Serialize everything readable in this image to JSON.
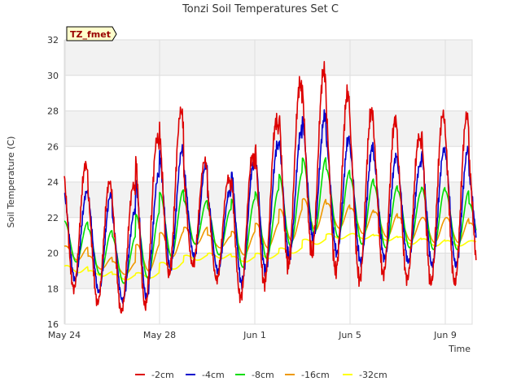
{
  "chart_data": {
    "type": "line",
    "title": "Tonzi Soil Temperatures Set C",
    "xlabel": "Time",
    "ylabel": "Soil Temperature (C)",
    "badge": "TZ_fmet",
    "xlim": [
      "2023-05-24",
      "2023-06-11"
    ],
    "ylim": [
      16,
      32
    ],
    "yticks": [
      16,
      18,
      20,
      22,
      24,
      26,
      28,
      30,
      32
    ],
    "xticks": [
      {
        "label": "May 24",
        "day": 0
      },
      {
        "label": "May 28",
        "day": 4
      },
      {
        "label": "Jun 1",
        "day": 8
      },
      {
        "label": "Jun 5",
        "day": 12
      },
      {
        "label": "Jun 9",
        "day": 16
      }
    ],
    "grid": true,
    "legend_position": "bottom",
    "start_day": 0,
    "end_day": 17.3,
    "series": [
      {
        "name": "-2cm",
        "color": "#dd0000",
        "daily_max": [
          25.0,
          24.0,
          23.8,
          26.4,
          28.0,
          25.2,
          24.2,
          25.4,
          27.4,
          29.5,
          30.3,
          29.0,
          28.0,
          27.5,
          26.5,
          27.8,
          27.7,
          26.0
        ],
        "daily_min": [
          18.0,
          17.2,
          16.7,
          17.0,
          18.8,
          19.3,
          18.5,
          17.5,
          18.3,
          19.3,
          20.0,
          19.0,
          18.5,
          18.8,
          18.5,
          18.3,
          18.3,
          18.8
        ]
      },
      {
        "name": "-4cm",
        "color": "#0000cc",
        "daily_max": [
          23.5,
          23.3,
          22.3,
          24.3,
          25.8,
          25.0,
          23.5,
          25.0,
          26.0,
          26.8,
          27.8,
          26.5,
          26.0,
          25.5,
          25.0,
          25.8,
          25.8,
          24.5
        ],
        "daily_min": [
          18.5,
          17.8,
          17.3,
          17.5,
          19.2,
          19.8,
          19.0,
          18.3,
          19.0,
          19.8,
          20.8,
          20.0,
          19.5,
          19.7,
          19.5,
          19.3,
          19.3,
          19.8
        ]
      },
      {
        "name": "-8cm",
        "color": "#00dd00",
        "daily_max": [
          21.8,
          21.3,
          20.9,
          22.2,
          23.5,
          23.0,
          22.5,
          23.0,
          23.5,
          24.5,
          25.4,
          24.7,
          24.2,
          23.8,
          23.5,
          23.7,
          23.5,
          22.8
        ],
        "daily_min": [
          19.5,
          18.8,
          18.3,
          18.6,
          19.8,
          20.5,
          19.9,
          19.2,
          19.7,
          20.4,
          21.1,
          20.9,
          20.5,
          20.3,
          20.3,
          20.2,
          20.2,
          20.4
        ]
      },
      {
        "name": "-16cm",
        "color": "#ee9900",
        "daily_max": [
          20.4,
          19.8,
          19.5,
          20.5,
          21.2,
          21.5,
          21.0,
          21.2,
          21.7,
          22.5,
          23.1,
          22.8,
          22.5,
          22.3,
          22.0,
          22.0,
          22.0,
          21.7
        ],
        "daily_min": [
          19.6,
          19.1,
          18.8,
          19.0,
          19.8,
          20.5,
          20.3,
          19.9,
          20.3,
          20.7,
          21.3,
          21.4,
          21.1,
          20.9,
          20.7,
          20.6,
          20.6,
          20.8
        ]
      },
      {
        "name": "-32cm",
        "color": "#ffff00",
        "daily_max": [
          19.3,
          19.0,
          18.8,
          18.9,
          19.5,
          19.9,
          20.0,
          19.8,
          20.0,
          20.3,
          20.8,
          21.1,
          21.1,
          21.0,
          20.9,
          20.8,
          20.7,
          20.7
        ],
        "daily_min": [
          18.9,
          18.7,
          18.5,
          18.6,
          19.1,
          19.6,
          19.7,
          19.5,
          19.7,
          20.0,
          20.5,
          20.8,
          20.8,
          20.7,
          20.5,
          20.4,
          20.4,
          20.5
        ]
      }
    ]
  }
}
